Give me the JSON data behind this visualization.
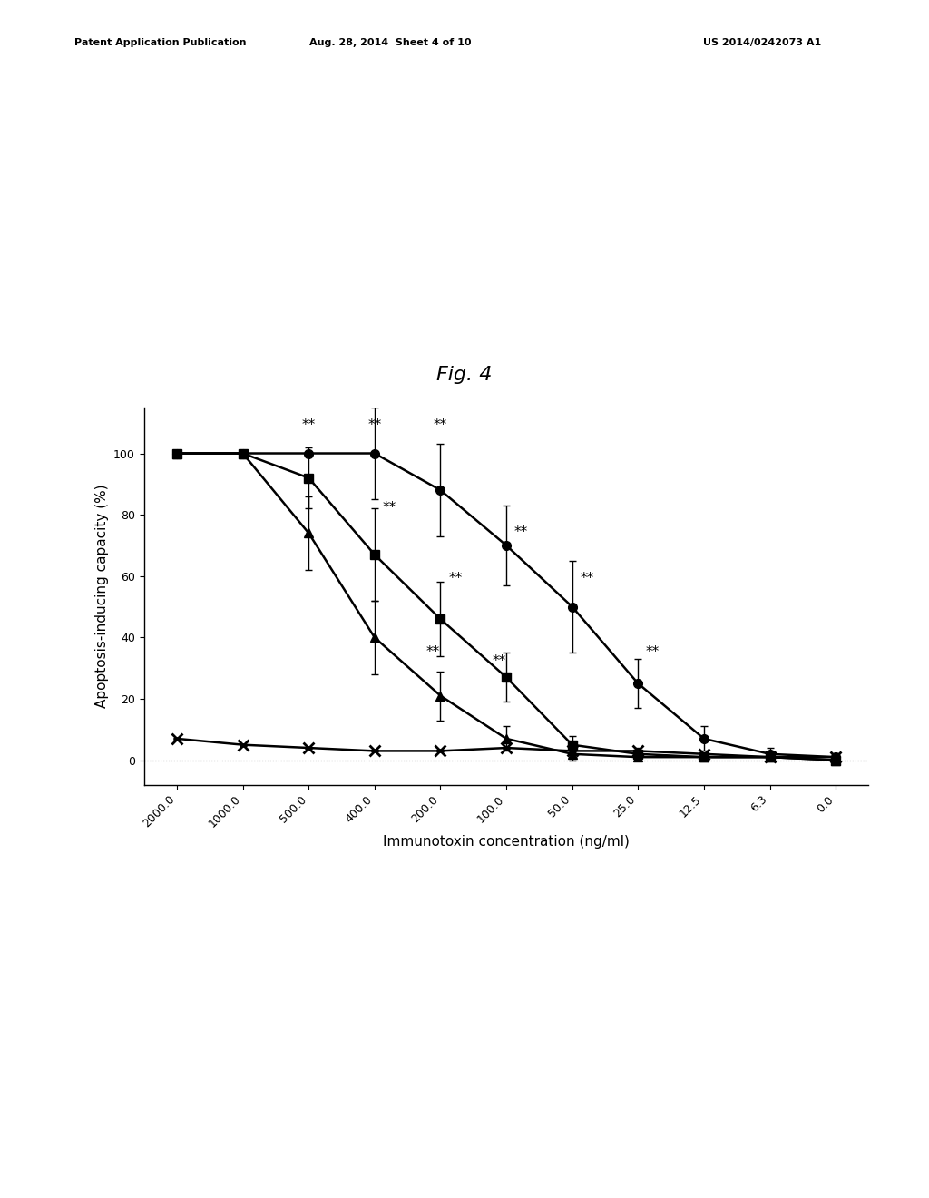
{
  "fig_label": "Fig. 4",
  "patent_header_left": "Patent Application Publication",
  "patent_header_mid": "Aug. 28, 2014  Sheet 4 of 10",
  "patent_header_right": "US 2014/0242073 A1",
  "xlabel": "Immunotoxin concentration (ng/ml)",
  "ylabel": "Apoptosis-inducing capacity (%)",
  "xtick_labels": [
    "2000.0",
    "1000.0",
    "500.0",
    "400.0",
    "200.0",
    "100.0",
    "50.0",
    "25.0",
    "12.5",
    "6.3",
    "0.0"
  ],
  "x_positions": [
    0,
    1,
    2,
    3,
    4,
    5,
    6,
    7,
    8,
    9,
    10
  ],
  "ylim": [
    -8,
    115
  ],
  "yticks": [
    0,
    20,
    40,
    60,
    80,
    100
  ],
  "series_circle": {
    "y": [
      100,
      100,
      100,
      100,
      88,
      70,
      50,
      25,
      7,
      2,
      1
    ],
    "yerr": [
      0,
      0,
      0,
      15,
      15,
      13,
      15,
      8,
      4,
      2,
      1
    ]
  },
  "series_square": {
    "y": [
      100,
      100,
      92,
      67,
      46,
      27,
      5,
      2,
      1,
      1,
      0
    ],
    "yerr": [
      0,
      0,
      10,
      15,
      12,
      8,
      3,
      2,
      1,
      1,
      0
    ]
  },
  "series_triangle": {
    "y": [
      100,
      100,
      74,
      40,
      21,
      7,
      2,
      1,
      1,
      1,
      0
    ],
    "yerr": [
      0,
      0,
      12,
      12,
      8,
      4,
      2,
      1,
      1,
      1,
      0
    ]
  },
  "series_x": {
    "y": [
      7,
      5,
      4,
      3,
      3,
      4,
      3,
      3,
      2,
      1,
      1
    ],
    "yerr": [
      0,
      0,
      0,
      0,
      0,
      0,
      0,
      0,
      0,
      0,
      0
    ]
  },
  "line_color": "#000000",
  "background_color": "#ffffff",
  "fontsize_axis_label": 11,
  "fontsize_tick": 9,
  "fontsize_fig_label": 16,
  "fontsize_header": 8,
  "fontsize_ann": 11
}
